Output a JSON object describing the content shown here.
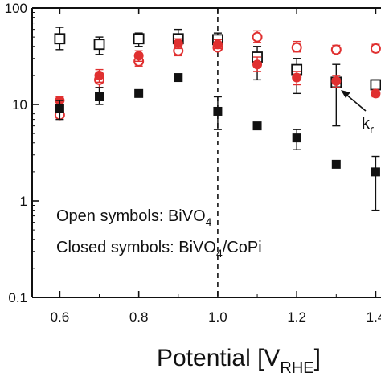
{
  "chart_data": {
    "type": "scatter",
    "xlabel": {
      "main": "Potential [V",
      "sub": "RHE",
      "close": "]"
    },
    "ylabel": "",
    "x_ticks": [
      "0.6",
      "0.8",
      "1.0",
      "1.2",
      "1.4"
    ],
    "y_ticks": [
      "0.1",
      "1",
      "10",
      "100"
    ],
    "y_scale": "log",
    "xlim": [
      0.53,
      1.45
    ],
    "ylim": [
      0.1,
      100
    ],
    "vline_x": 1.0,
    "annotations": [
      {
        "id": "open",
        "main": "Open symbols: BiVO",
        "sub": "4",
        "tail": ""
      },
      {
        "id": "closed",
        "main": "Closed symbols: BiVO",
        "sub": "4",
        "tail": "/CoPi"
      }
    ],
    "k_label": {
      "main": "k",
      "sub": "r"
    },
    "colors": {
      "black": "#111111",
      "red": "#e03030"
    },
    "series": [
      {
        "marker": "open-square",
        "color": "#111111",
        "x": [
          0.6,
          0.7,
          0.8,
          0.9,
          1.0,
          1.1,
          1.2,
          1.3,
          1.4
        ],
        "y": [
          48,
          42,
          48,
          48,
          47,
          31,
          23,
          17,
          16
        ],
        "err": [
          [
            37,
            63
          ],
          [
            33,
            50
          ],
          [
            40,
            55
          ],
          [
            37,
            60
          ],
          [
            37,
            55
          ],
          [
            18,
            40
          ],
          [
            13,
            30
          ],
          [
            6,
            26
          ],
          [
            13,
            18
          ]
        ]
      },
      {
        "marker": "open-circle",
        "color": "#e03030",
        "x": [
          0.6,
          0.7,
          0.8,
          0.9,
          1.0,
          1.1,
          1.2,
          1.3,
          1.4
        ],
        "y": [
          7.8,
          18,
          28,
          36,
          39,
          50,
          39,
          37,
          38
        ],
        "err": [
          [
            7.3,
            8.3
          ],
          [
            15,
            21
          ],
          [
            25,
            32
          ],
          [
            32,
            41
          ],
          [
            36,
            43
          ],
          [
            44,
            58
          ],
          [
            35,
            45
          ],
          [
            34,
            41
          ],
          [
            35,
            42
          ]
        ]
      },
      {
        "marker": "closed-circle",
        "color": "#e03030",
        "x": [
          0.6,
          0.7,
          0.8,
          0.9,
          1.0,
          1.1,
          1.2,
          1.3,
          1.4
        ],
        "y": [
          11,
          20,
          32,
          43,
          42,
          26,
          19,
          17.5,
          13
        ],
        "err": [
          [
            10,
            12
          ],
          [
            17,
            23
          ],
          [
            28,
            36
          ],
          [
            38,
            48
          ],
          [
            38,
            47
          ],
          [
            22,
            31
          ],
          [
            16,
            22
          ],
          [
            15,
            20
          ],
          [
            12,
            14
          ]
        ]
      },
      {
        "marker": "closed-square",
        "color": "#111111",
        "x": [
          0.6,
          0.7,
          0.8,
          0.9,
          1.0,
          1.1,
          1.2,
          1.3,
          1.4
        ],
        "y": [
          9,
          12,
          13,
          19,
          8.5,
          6,
          4.5,
          2.4,
          2
        ],
        "err": [
          [
            7,
            11
          ],
          [
            10,
            15
          ],
          null,
          null,
          [
            5.5,
            12
          ],
          null,
          [
            3.4,
            5.5
          ],
          null,
          [
            0.8,
            2.9
          ]
        ]
      }
    ]
  }
}
